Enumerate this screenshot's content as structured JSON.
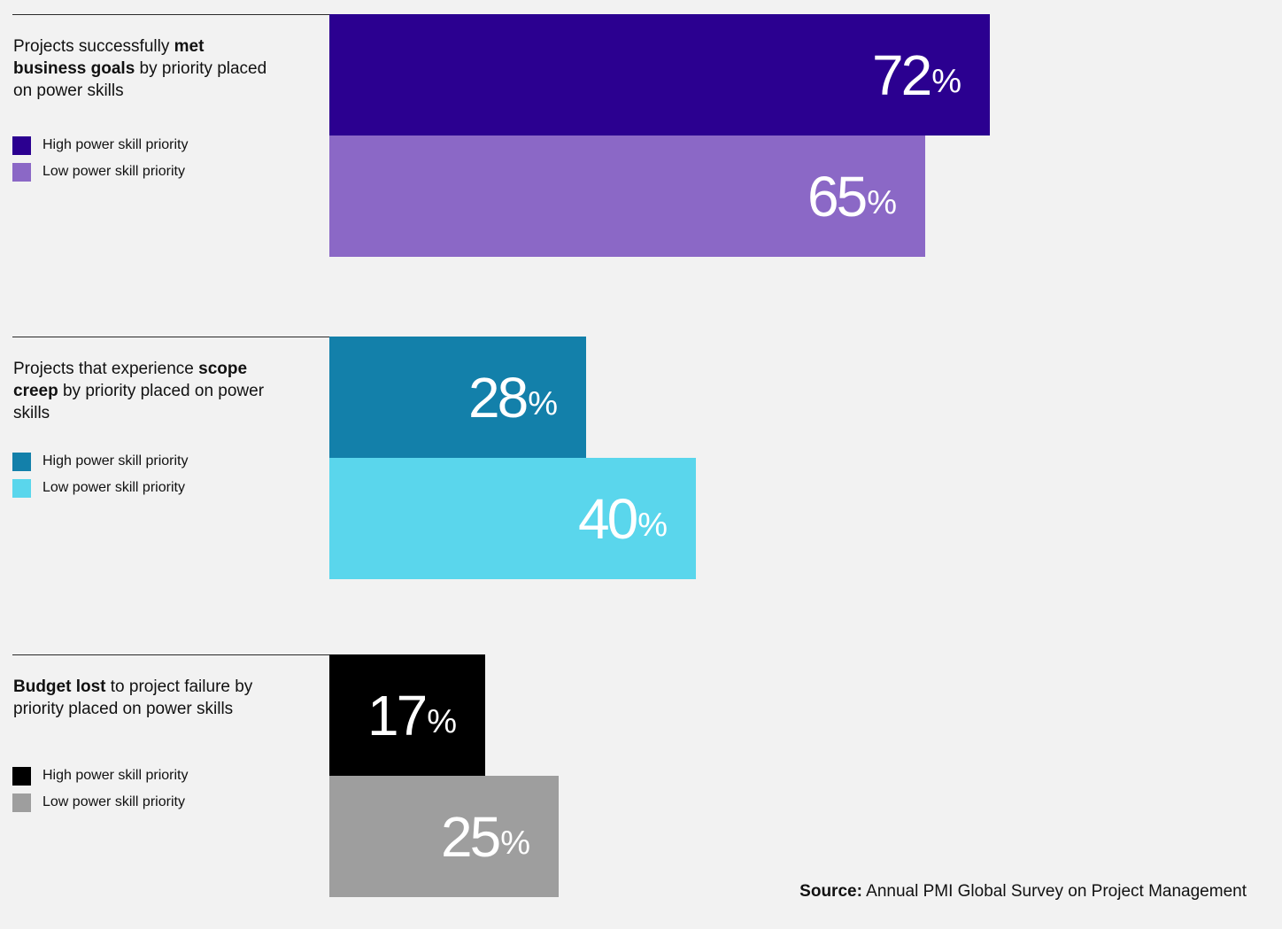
{
  "chart_data": [
    {
      "type": "bar",
      "orientation": "horizontal",
      "title_parts": {
        "pre": "Projects successfully ",
        "bold": "met business goals",
        "post": " by priority placed on power skills"
      },
      "series": [
        {
          "name": "High power skill priority",
          "value": 72,
          "color": "#2b0090"
        },
        {
          "name": "Low power skill priority",
          "value": 65,
          "color": "#8b68c6"
        }
      ],
      "unit": "%",
      "xlim": [
        0,
        100
      ]
    },
    {
      "type": "bar",
      "orientation": "horizontal",
      "title_parts": {
        "pre": "Projects that experience ",
        "bold": "scope creep",
        "post": " by priority placed on power skills"
      },
      "series": [
        {
          "name": "High power skill priority",
          "value": 28,
          "color": "#1380aa"
        },
        {
          "name": "Low power skill priority",
          "value": 40,
          "color": "#5ad6ec"
        }
      ],
      "unit": "%",
      "xlim": [
        0,
        100
      ]
    },
    {
      "type": "bar",
      "orientation": "horizontal",
      "title_parts": {
        "pre": "",
        "bold": "Budget lost",
        "post": " to project failure by priority placed on power skills"
      },
      "series": [
        {
          "name": "High power skill priority",
          "value": 17,
          "color": "#000000"
        },
        {
          "name": "Low power skill priority",
          "value": 25,
          "color": "#9e9e9e"
        }
      ],
      "unit": "%",
      "xlim": [
        0,
        100
      ]
    }
  ],
  "source": {
    "label": "Source:",
    "text": " Annual PMI Global Survey on Project Management"
  }
}
